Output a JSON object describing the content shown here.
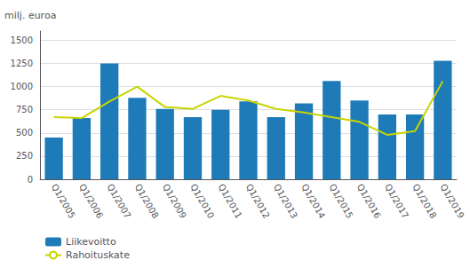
{
  "chart_data": {
    "type": "bar",
    "ylabel": "milj. euroa",
    "categories": [
      "Q1/2005",
      "Q1/2006",
      "Q1/2007",
      "Q1/2008",
      "Q1/2009",
      "Q1/2010",
      "Q1/2011",
      "Q1/2012",
      "Q1/2013",
      "Q1/2014",
      "Q1/2015",
      "Q1/2016",
      "Q1/2017",
      "Q1/2018",
      "Q1/2019"
    ],
    "series": [
      {
        "name": "Liikevoitto",
        "type": "bar",
        "color": "#1f7bb8",
        "values": [
          450,
          660,
          1250,
          880,
          760,
          670,
          750,
          840,
          670,
          820,
          1060,
          850,
          700,
          700,
          1280
        ]
      },
      {
        "name": "Rahoituskate",
        "type": "line",
        "color": "#c8d400",
        "values": [
          670,
          660,
          840,
          1000,
          780,
          760,
          900,
          850,
          760,
          720,
          670,
          620,
          480,
          520,
          1060
        ]
      }
    ],
    "ylim": [
      0,
      1600
    ],
    "yticks": [
      0,
      250,
      500,
      750,
      1000,
      1250,
      1500
    ],
    "grid": true,
    "legend": "lower left"
  }
}
